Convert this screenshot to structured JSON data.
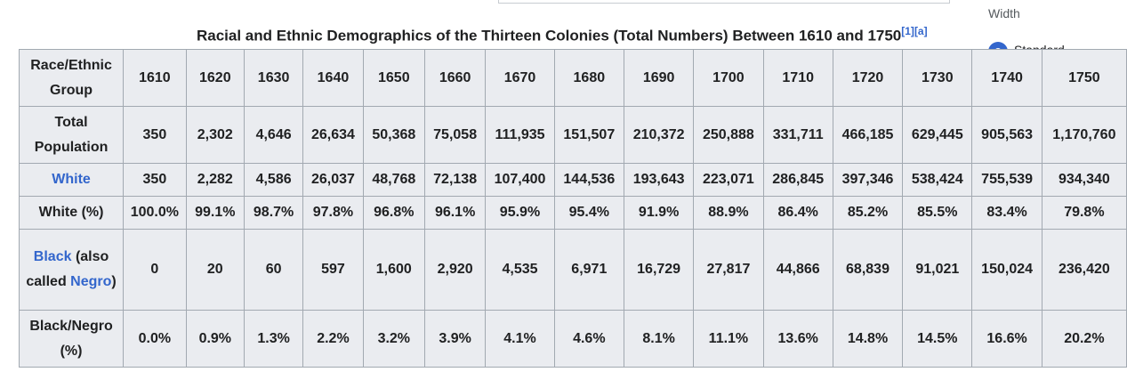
{
  "sidebar": {
    "width_label": "Width",
    "selected_option": "Standard"
  },
  "caption": {
    "title": "Racial and Ethnic Demographics of the Thirteen Colonies (Total Numbers) Between 1610 and 1750",
    "ref1": "[1]",
    "ref2": "[a]"
  },
  "table": {
    "corner_header": "Race/Ethnic Group",
    "years": [
      "1610",
      "1620",
      "1630",
      "1640",
      "1650",
      "1660",
      "1670",
      "1680",
      "1690",
      "1700",
      "1710",
      "1720",
      "1730",
      "1740",
      "1750"
    ],
    "rows": {
      "total": {
        "label": "Total Population",
        "values": [
          "350",
          "2,302",
          "4,646",
          "26,634",
          "50,368",
          "75,058",
          "111,935",
          "151,507",
          "210,372",
          "250,888",
          "331,711",
          "466,185",
          "629,445",
          "905,563",
          "1,170,760"
        ]
      },
      "white": {
        "label": "White",
        "values": [
          "350",
          "2,282",
          "4,586",
          "26,037",
          "48,768",
          "72,138",
          "107,400",
          "144,536",
          "193,643",
          "223,071",
          "286,845",
          "397,346",
          "538,424",
          "755,539",
          "934,340"
        ]
      },
      "white_pct": {
        "label": "White (%)",
        "values": [
          "100.0%",
          "99.1%",
          "98.7%",
          "97.8%",
          "96.8%",
          "96.1%",
          "95.9%",
          "95.4%",
          "91.9%",
          "88.9%",
          "86.4%",
          "85.2%",
          "85.5%",
          "83.4%",
          "79.8%"
        ]
      },
      "black": {
        "label_link1": "Black",
        "label_mid": " (also called ",
        "label_link2": "Negro",
        "label_end": ")",
        "values": [
          "0",
          "20",
          "60",
          "597",
          "1,600",
          "2,920",
          "4,535",
          "6,971",
          "16,729",
          "27,817",
          "44,866",
          "68,839",
          "91,021",
          "150,024",
          "236,420"
        ]
      },
      "black_pct": {
        "label": "Black/Negro (%)",
        "values": [
          "0.0%",
          "0.9%",
          "1.3%",
          "2.2%",
          "3.2%",
          "3.9%",
          "4.1%",
          "4.6%",
          "8.1%",
          "11.1%",
          "13.6%",
          "14.8%",
          "14.5%",
          "16.6%",
          "20.2%"
        ]
      }
    }
  }
}
